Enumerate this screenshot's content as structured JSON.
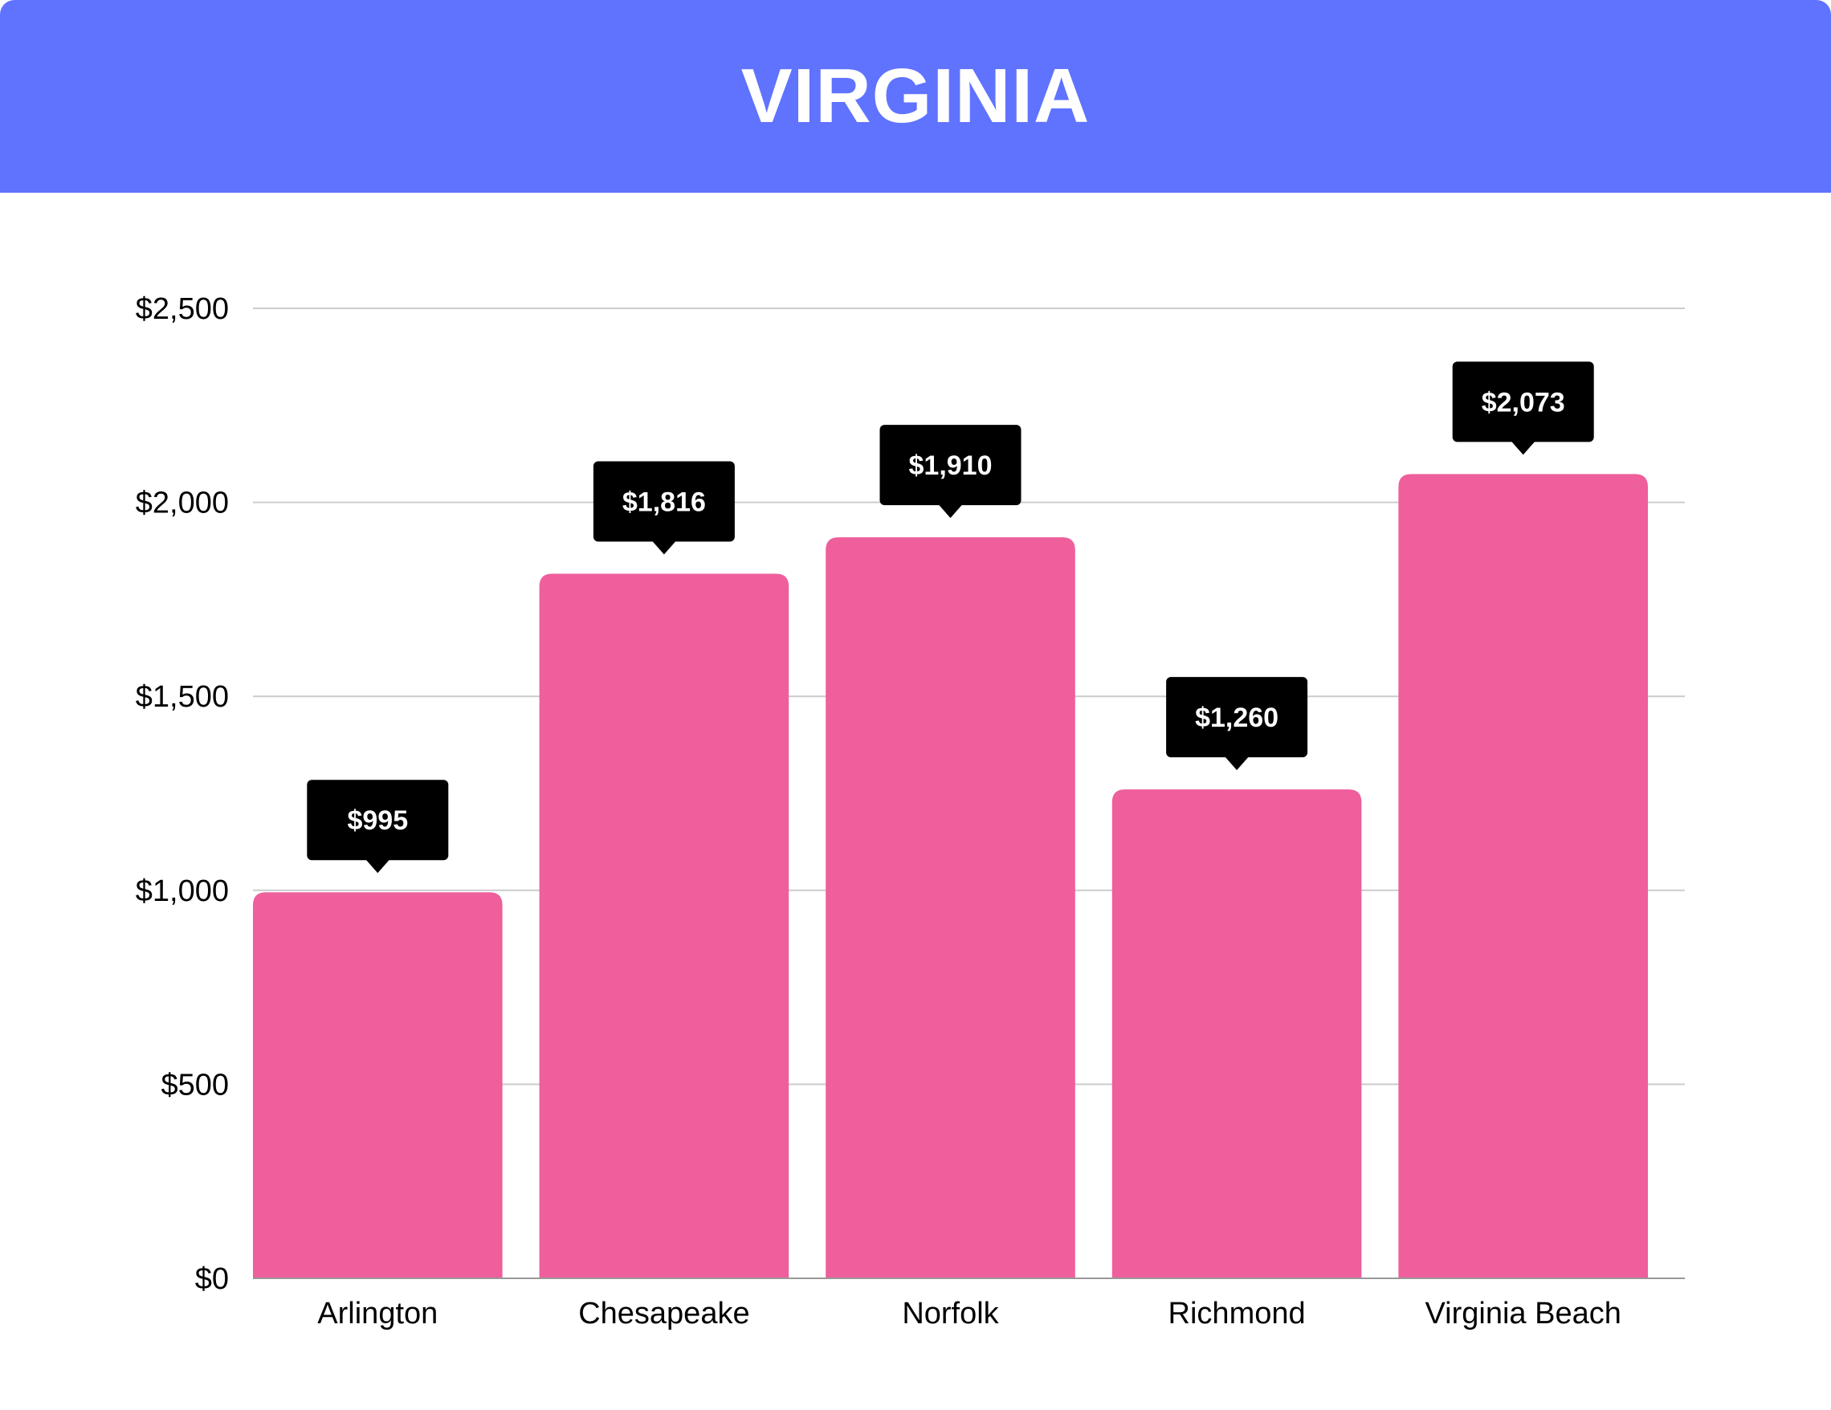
{
  "header": {
    "title": "VIRGINIA"
  },
  "colors": {
    "header_bg": "#5f73ff",
    "bar": "#ee5f9c",
    "label_bg": "#000000",
    "grid": "#cccccc"
  },
  "chart_data": {
    "type": "bar",
    "categories": [
      "Arlington",
      "Chesapeake",
      "Norfolk",
      "Richmond",
      "Virginia Beach"
    ],
    "values": [
      995,
      1816,
      1910,
      1260,
      2073
    ],
    "value_labels": [
      "$995",
      "$1,816",
      "$1,910",
      "$1,260",
      "$2,073"
    ],
    "ylim": [
      0,
      2500
    ],
    "yticks": [
      0,
      500,
      1000,
      1500,
      2000,
      2500
    ],
    "ytick_labels": [
      "$0",
      "$500",
      "$1,000",
      "$1,500",
      "$2,000",
      "$2,500"
    ],
    "grid": true,
    "legend": "none"
  }
}
